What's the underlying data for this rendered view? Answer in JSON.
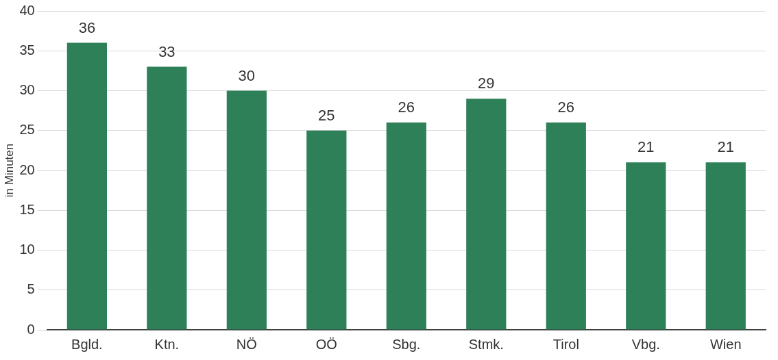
{
  "chart_data": {
    "type": "bar",
    "ylabel": "in Minuten",
    "categories": [
      "Bgld.",
      "Ktn.",
      "NÖ",
      "OÖ",
      "Sbg.",
      "Stmk.",
      "Tirol",
      "Vbg.",
      "Wien"
    ],
    "values": [
      36,
      33,
      30,
      25,
      26,
      29,
      26,
      21,
      21
    ],
    "color": "#2e8059",
    "ylim": [
      0,
      40
    ],
    "yticks": [
      0,
      5,
      10,
      15,
      20,
      25,
      30,
      35,
      40
    ],
    "grid": "y",
    "data_labels": true
  }
}
